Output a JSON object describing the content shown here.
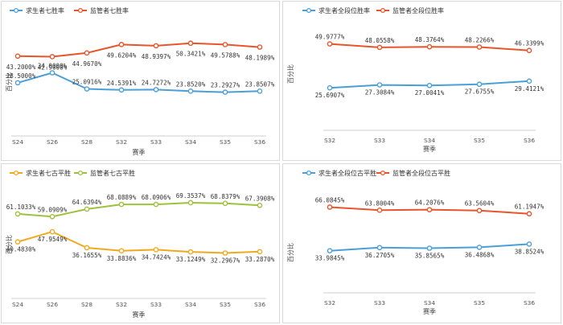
{
  "chart_data": [
    {
      "type": "line",
      "xlabel": "赛季",
      "ylabel": "百分比",
      "categories": [
        "S24",
        "S26",
        "S28",
        "S32",
        "S33",
        "S34",
        "S35",
        "S36"
      ],
      "ylim": [
        0,
        60
      ],
      "grid": false,
      "legend": "top-left",
      "series": [
        {
          "name": "求生者七胜率",
          "color": "#4a9fd8",
          "values": [
            28.5,
            34.0,
            25.0916,
            24.5391,
            24.7272,
            23.852,
            23.2927,
            23.8507
          ],
          "labels": [
            "28.5000%",
            "34.0000%",
            "25.0916%",
            "24.5391%",
            "24.7272%",
            "23.8520%",
            "23.2927%",
            "23.8507%"
          ]
        },
        {
          "name": "监管者七胜率",
          "color": "#e8552a",
          "values": [
            43.2,
            42.9,
            44.967,
            49.6204,
            48.9397,
            50.3421,
            49.5788,
            48.1989
          ],
          "labels": [
            "43.2000%",
            "42.9000%",
            "44.9670%",
            "49.6204%",
            "48.9397%",
            "50.3421%",
            "49.5788%",
            "48.1989%"
          ]
        }
      ]
    },
    {
      "type": "line",
      "xlabel": "赛季",
      "ylabel": "百分比",
      "categories": [
        "S32",
        "S33",
        "S34",
        "S35",
        "S36"
      ],
      "ylim": [
        0,
        60
      ],
      "grid": false,
      "legend": "top-left",
      "series": [
        {
          "name": "求生者全段位胜率",
          "color": "#4a9fd8",
          "values": [
            25.6907,
            27.3084,
            27.0041,
            27.6755,
            29.4121
          ],
          "labels": [
            "25.6907%",
            "27.3084%",
            "27.0041%",
            "27.6755%",
            "29.4121%"
          ]
        },
        {
          "name": "监管者全段位胜率",
          "color": "#e8552a",
          "values": [
            49.9777,
            48.0558,
            48.3764,
            48.2266,
            46.3399
          ],
          "labels": [
            "49.9777%",
            "48.0558%",
            "48.3764%",
            "48.2266%",
            "46.3399%"
          ]
        }
      ]
    },
    {
      "type": "line",
      "xlabel": "赛季",
      "ylabel": "百分比",
      "categories": [
        "S24",
        "S26",
        "S28",
        "S32",
        "S33",
        "S34",
        "S35",
        "S36"
      ],
      "ylim": [
        0,
        80
      ],
      "grid": false,
      "legend": "top-left",
      "series": [
        {
          "name": "求生者七古平胜",
          "color": "#f2a81d",
          "values": [
            40.483,
            47.9549,
            36.1655,
            33.8836,
            34.7424,
            33.1249,
            32.2967,
            33.287
          ],
          "labels": [
            "40.4830%",
            "47.9549%",
            "36.1655%",
            "33.8836%",
            "34.7424%",
            "33.1249%",
            "32.2967%",
            "33.2870%"
          ]
        },
        {
          "name": "监管者七古平胜",
          "color": "#9dc23c",
          "values": [
            61.1033,
            59.0909,
            64.6394,
            68.0889,
            68.0906,
            69.3537,
            68.8379,
            67.3908
          ],
          "labels": [
            "61.1033%",
            "59.0909%",
            "64.6394%",
            "68.0889%",
            "68.0906%",
            "69.3537%",
            "68.8379%",
            "67.3908%"
          ]
        }
      ]
    },
    {
      "type": "line",
      "xlabel": "赛季",
      "ylabel": "百分比",
      "categories": [
        "S32",
        "S33",
        "S34",
        "S35",
        "S36"
      ],
      "ylim": [
        0,
        80
      ],
      "grid": false,
      "legend": "top-left",
      "series": [
        {
          "name": "求生者全段位古平胜",
          "color": "#4a9fd8",
          "values": [
            33.9845,
            36.2705,
            35.8565,
            36.4868,
            38.8524
          ],
          "labels": [
            "33.9845%",
            "36.2705%",
            "35.8565%",
            "36.4868%",
            "38.8524%"
          ]
        },
        {
          "name": "监管者全段位古平胜",
          "color": "#e8552a",
          "values": [
            66.0845,
            63.8004,
            64.2076,
            63.5604,
            61.1947
          ],
          "labels": [
            "66.0845%",
            "63.8004%",
            "64.2076%",
            "63.5604%",
            "61.1947%"
          ]
        }
      ]
    }
  ]
}
